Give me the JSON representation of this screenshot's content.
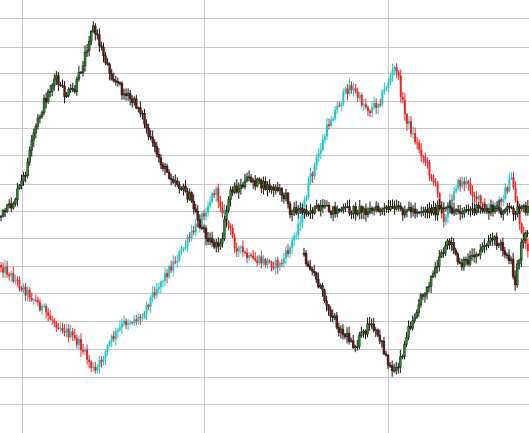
{
  "chart_data": {
    "type": "candlestick",
    "title": "",
    "xlabel": "",
    "ylabel": "",
    "grid": true,
    "legend": "none",
    "ylim": [
      0,
      433
    ],
    "colors": {
      "series_a_up": "#1fc6c6",
      "series_a_down": "#ee2222",
      "series_b_up": "#1b8a1b",
      "series_b_down": "#7a1010",
      "wick": "#111111",
      "grid": "#c8c8c8",
      "background": "#ffffff"
    },
    "series": [
      {
        "style": "cyan-red",
        "start_x": 0,
        "end_x": 528,
        "path": [
          [
            0,
            265
          ],
          [
            8,
            272
          ],
          [
            20,
            285
          ],
          [
            35,
            300
          ],
          [
            50,
            318
          ],
          [
            65,
            330
          ],
          [
            80,
            345
          ],
          [
            95,
            373
          ],
          [
            110,
            342
          ],
          [
            125,
            322
          ],
          [
            140,
            318
          ],
          [
            155,
            290
          ],
          [
            170,
            268
          ],
          [
            185,
            246
          ],
          [
            200,
            220
          ],
          [
            215,
            190
          ],
          [
            225,
            215
          ],
          [
            235,
            245
          ],
          [
            250,
            260
          ],
          [
            265,
            262
          ],
          [
            280,
            265
          ],
          [
            290,
            248
          ],
          [
            300,
            220
          ],
          [
            310,
            180
          ],
          [
            320,
            150
          ],
          [
            330,
            120
          ],
          [
            340,
            102
          ],
          [
            350,
            85
          ],
          [
            360,
            100
          ],
          [
            370,
            110
          ],
          [
            380,
            100
          ],
          [
            390,
            78
          ],
          [
            396,
            66
          ],
          [
            405,
            115
          ],
          [
            415,
            140
          ],
          [
            425,
            160
          ],
          [
            435,
            185
          ],
          [
            445,
            222
          ],
          [
            455,
            185
          ],
          [
            465,
            182
          ],
          [
            475,
            195
          ],
          [
            485,
            210
          ],
          [
            495,
            208
          ],
          [
            505,
            192
          ],
          [
            512,
            178
          ],
          [
            520,
            225
          ],
          [
            528,
            250
          ]
        ]
      },
      {
        "style": "green-darkred",
        "start_x": 0,
        "end_x": 528,
        "path": [
          [
            0,
            217
          ],
          [
            12,
            205
          ],
          [
            25,
            175
          ],
          [
            35,
            130
          ],
          [
            45,
            100
          ],
          [
            55,
            78
          ],
          [
            65,
            95
          ],
          [
            75,
            90
          ],
          [
            85,
            55
          ],
          [
            92,
            25
          ],
          [
            100,
            45
          ],
          [
            110,
            72
          ],
          [
            125,
            95
          ],
          [
            140,
            108
          ],
          [
            150,
            140
          ],
          [
            165,
            170
          ],
          [
            175,
            180
          ],
          [
            190,
            198
          ],
          [
            200,
            225
          ],
          [
            210,
            240
          ],
          [
            220,
            250
          ],
          [
            230,
            190
          ],
          [
            240,
            188
          ],
          [
            250,
            178
          ],
          [
            260,
            185
          ],
          [
            270,
            188
          ],
          [
            280,
            192
          ],
          [
            288,
            200
          ],
          [
            290,
            210
          ]
        ]
      },
      {
        "style": "green-darkred",
        "start_x": 303,
        "end_x": 528,
        "path": [
          [
            303,
            255
          ],
          [
            315,
            275
          ],
          [
            325,
            300
          ],
          [
            340,
            330
          ],
          [
            355,
            345
          ],
          [
            370,
            325
          ],
          [
            380,
            340
          ],
          [
            392,
            372
          ],
          [
            400,
            360
          ],
          [
            410,
            325
          ],
          [
            420,
            300
          ],
          [
            430,
            280
          ],
          [
            440,
            260
          ],
          [
            450,
            240
          ],
          [
            460,
            268
          ],
          [
            470,
            258
          ],
          [
            480,
            250
          ],
          [
            490,
            238
          ],
          [
            500,
            245
          ],
          [
            510,
            258
          ],
          [
            515,
            282
          ],
          [
            522,
            240
          ],
          [
            528,
            228
          ]
        ]
      }
    ]
  }
}
